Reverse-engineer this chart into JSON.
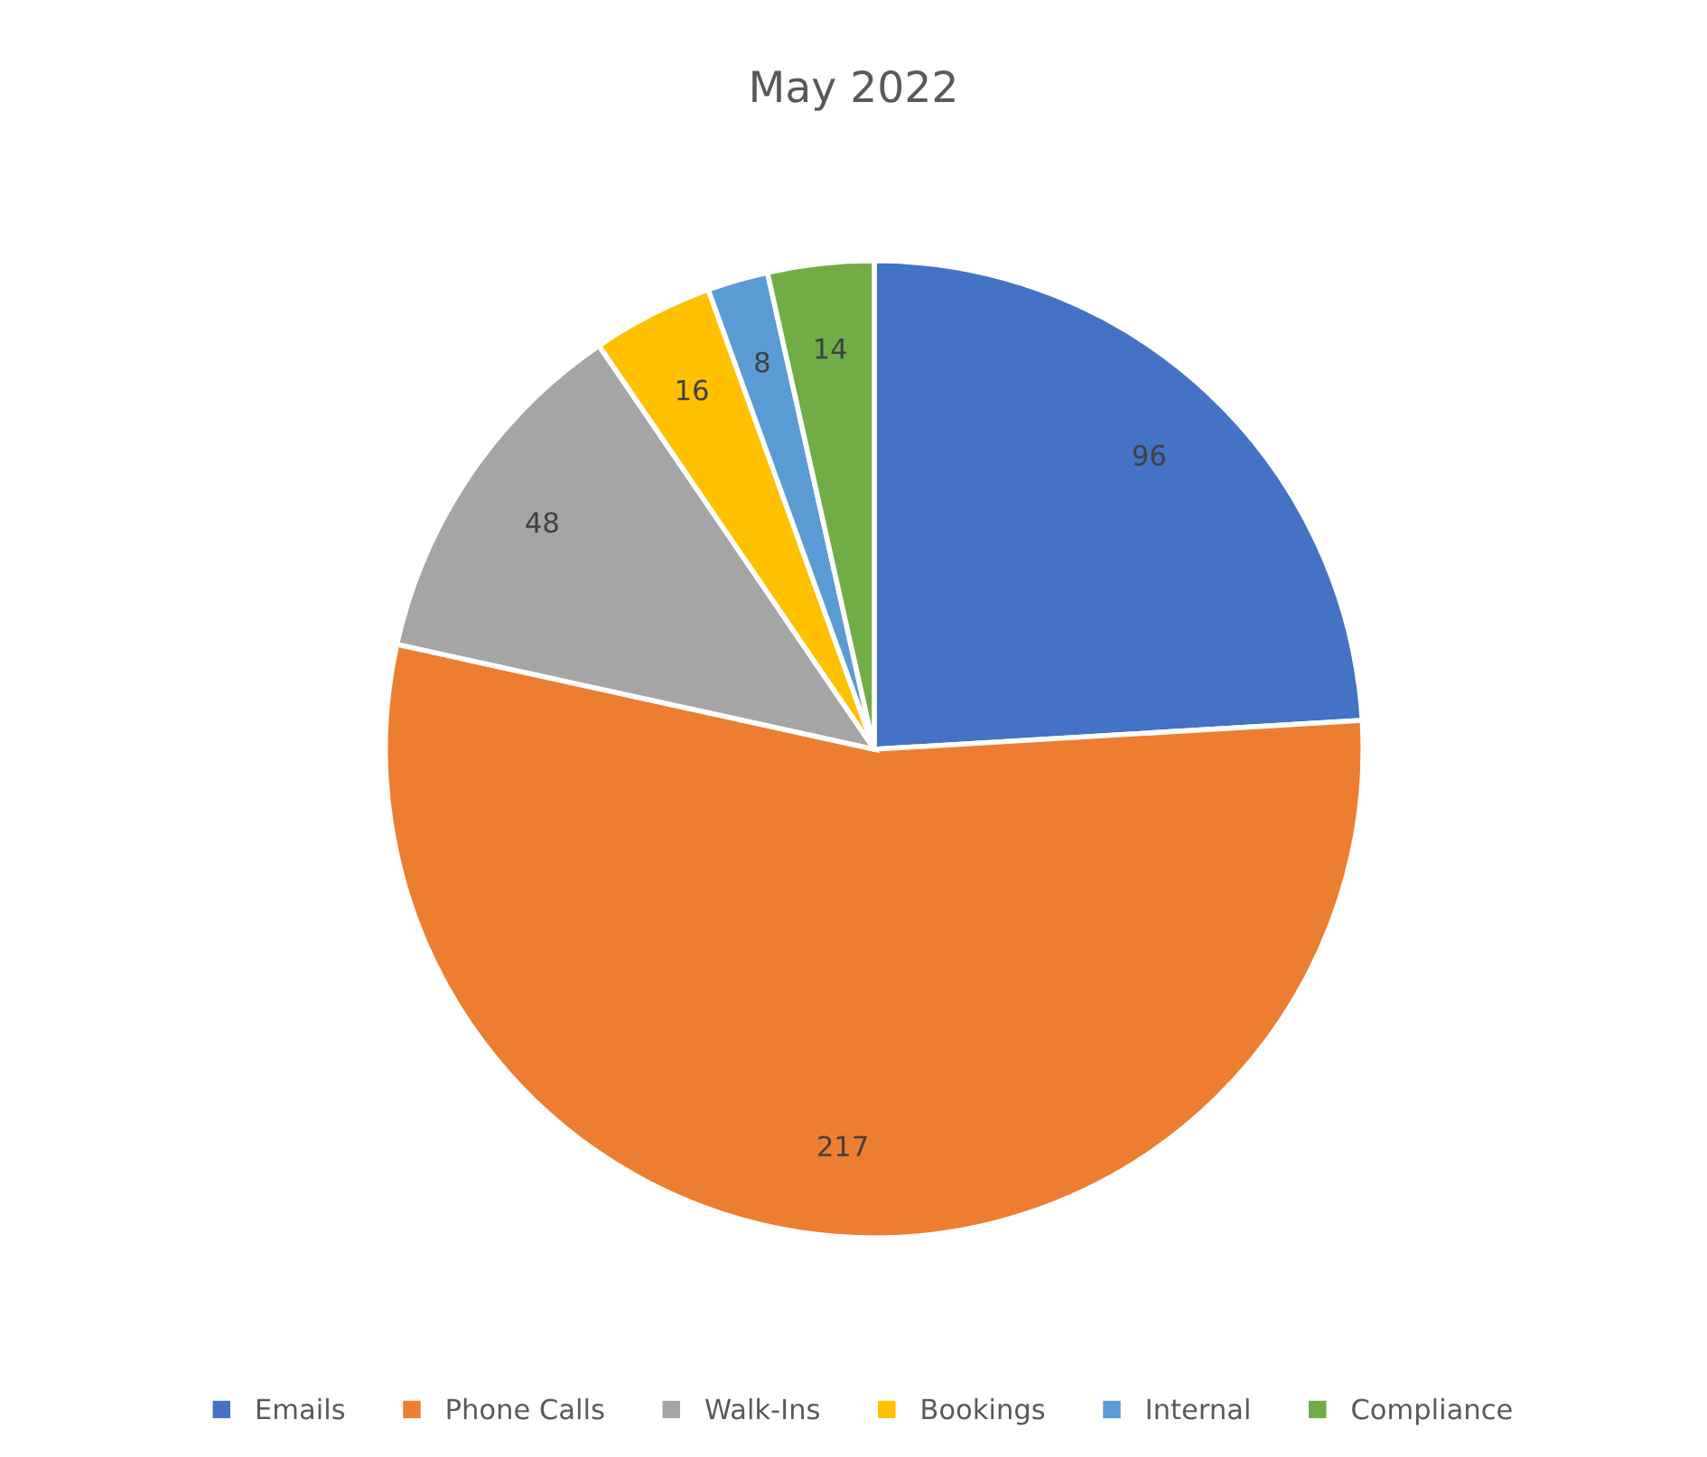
{
  "chart_data": {
    "type": "pie",
    "title": "May 2022",
    "categories": [
      "Emails",
      "Phone Calls",
      "Walk-Ins",
      "Bookings",
      "Internal",
      "Compliance"
    ],
    "values": [
      96,
      217,
      48,
      16,
      8,
      14
    ],
    "colors": [
      "#4472c4",
      "#ed7d31",
      "#a5a5a5",
      "#ffc000",
      "#5b9bd5",
      "#70ad47"
    ],
    "data_labels": true,
    "legend": "bottom"
  }
}
